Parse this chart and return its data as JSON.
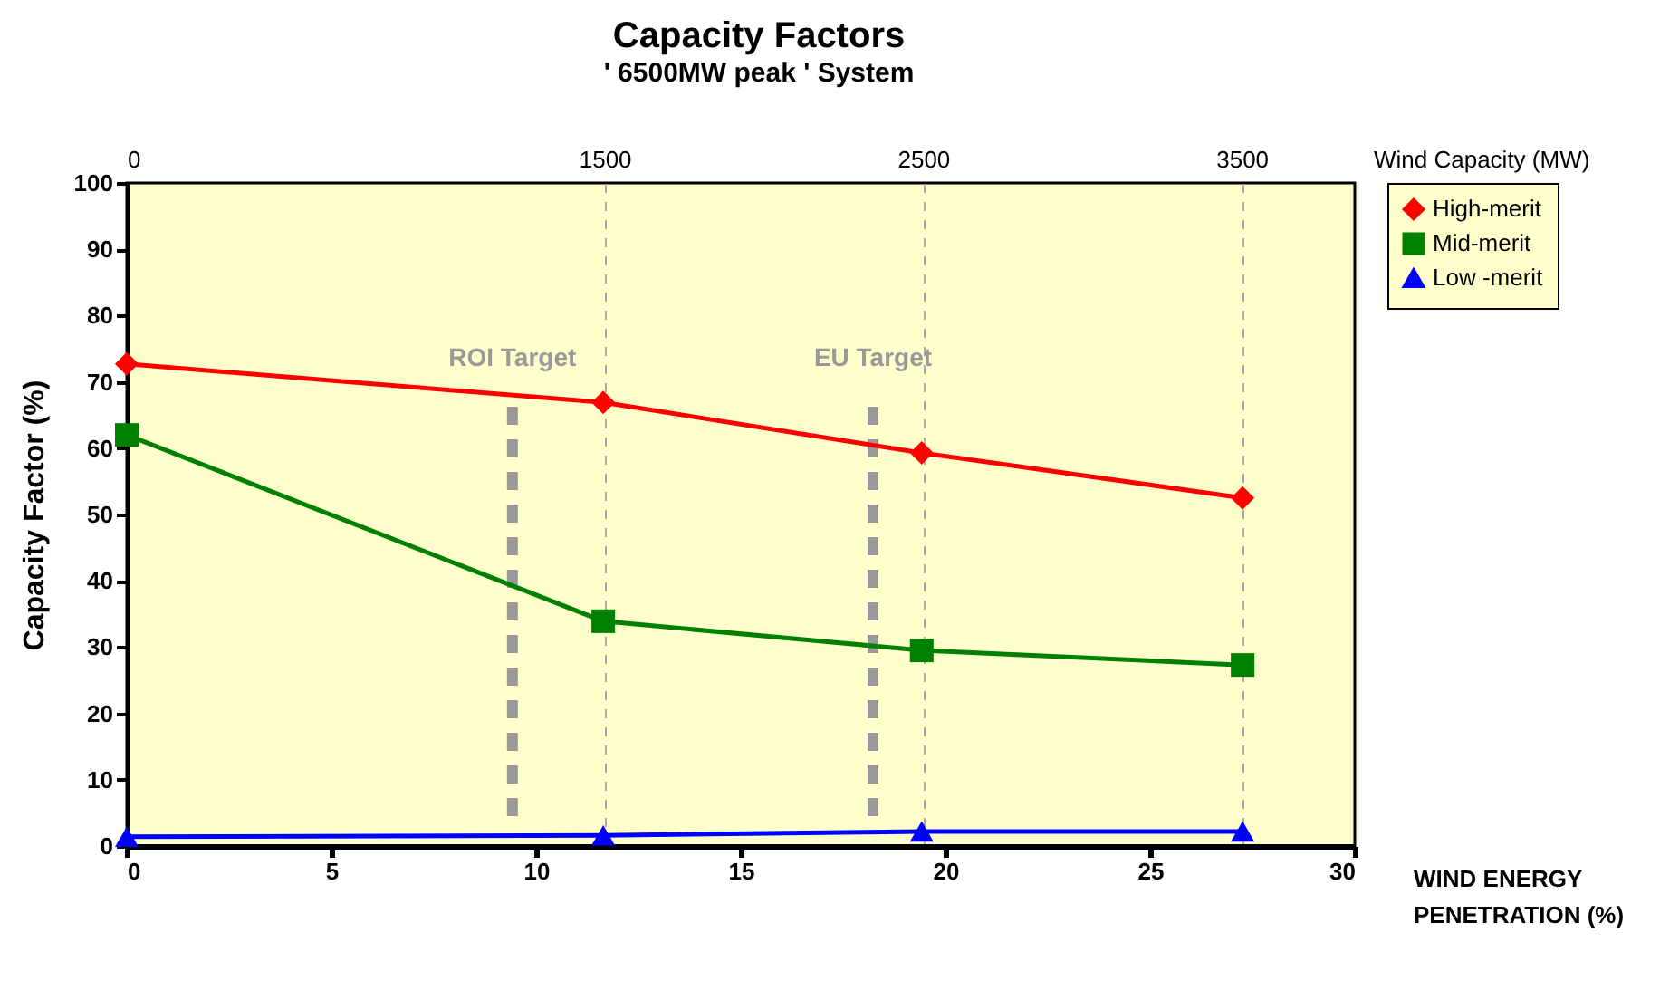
{
  "chart_data": {
    "type": "line",
    "title": "Capacity Factors",
    "subtitle": "' 6500MW peak '  System",
    "xlabel": "WIND ENERGY PENETRATION (%)",
    "ylabel": "Capacity Factor (%)",
    "x2label": "Wind Capacity (MW)",
    "x": [
      0,
      11.64,
      19.42,
      27.26
    ],
    "series": [
      {
        "name": "High-merit",
        "color": "#ff0000",
        "marker": "diamond",
        "values": [
          72.7,
          66.9,
          59.3,
          52.5
        ]
      },
      {
        "name": "Mid-merit",
        "color": "#008000",
        "marker": "square",
        "values": [
          62,
          33.9,
          29.5,
          27.3
        ]
      },
      {
        "name": "Low -merit",
        "color": "#0000ff",
        "marker": "triangle",
        "values": [
          1.4,
          1.6,
          2.2,
          2.2
        ]
      }
    ],
    "xlim": [
      0,
      30
    ],
    "xticks": [
      0,
      5,
      10,
      15,
      20,
      25,
      30
    ],
    "ylim": [
      0,
      100
    ],
    "yticks": [
      0,
      10,
      20,
      30,
      40,
      50,
      60,
      70,
      80,
      90,
      100
    ],
    "x2lim": [
      0,
      3855
    ],
    "x2ticks": [
      0,
      1500,
      2500,
      3500
    ],
    "ref_lines": [
      {
        "axis": "x",
        "value": 9.42,
        "label": "ROI Target",
        "color": "#999999",
        "line_style": "dashed"
      },
      {
        "axis": "x",
        "value": 18.23,
        "label": "EU Target",
        "color": "#999999",
        "line_style": "dashed"
      }
    ],
    "grid": "x2",
    "legend": "right",
    "line_style": "solid"
  }
}
